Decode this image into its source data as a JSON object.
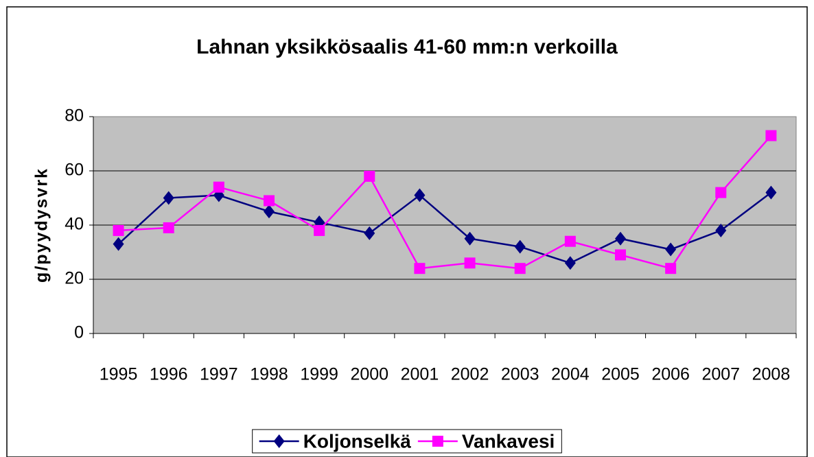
{
  "chart_data": {
    "type": "line",
    "title": "Lahnan yksikkösaalis 41-60 mm:n verkoilla",
    "y_label": "g/pyydysvrk",
    "categories": [
      "1995",
      "1996",
      "1997",
      "1998",
      "1999",
      "2000",
      "2001",
      "2002",
      "2003",
      "2004",
      "2005",
      "2006",
      "2007",
      "2008"
    ],
    "series": [
      {
        "name": "Koljonselkä",
        "color": "#000080",
        "marker": "diamond",
        "values": [
          33,
          50,
          51,
          45,
          41,
          37,
          51,
          35,
          32,
          26,
          35,
          31,
          38,
          52
        ]
      },
      {
        "name": "Vankavesi",
        "color": "#ff00ff",
        "marker": "square",
        "values": [
          38,
          39,
          54,
          49,
          38,
          58,
          24,
          26,
          24,
          34,
          29,
          24,
          52,
          73
        ]
      }
    ],
    "ylim": [
      0,
      80
    ],
    "yticks": [
      0,
      20,
      40,
      60,
      80
    ],
    "grid": true,
    "legend": "bottom"
  }
}
